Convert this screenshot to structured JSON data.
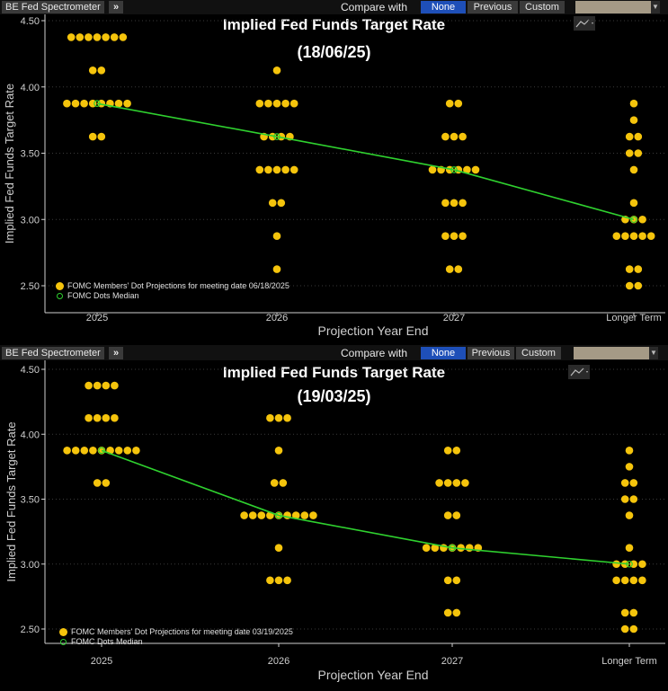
{
  "colors": {
    "dot": "#f5c40c",
    "median_line": "#2fd12f",
    "axis": "#cfcfcf",
    "background": "#000000",
    "toolbar_active": "#1e4fb8"
  },
  "panels": [
    {
      "toolbar": {
        "title": "BE Fed Spectrometer",
        "chevron": "»",
        "compare_label": "Compare with",
        "buttons": [
          "None",
          "Previous",
          "Custom"
        ],
        "active_button": "None"
      },
      "chart_icon": "chart-settings-icon",
      "legend": {
        "dots_label": "FOMC Members' Dot Projections for meeting date 06/18/2025",
        "median_label": "FOMC Dots Median"
      },
      "chart_data": {
        "type": "scatter",
        "title": "Implied Fed Funds Target Rate",
        "subtitle": "(18/06/25)",
        "xlabel": "Projection Year End",
        "ylabel": "Implied Fed Funds Target Rate",
        "categories": [
          "2025",
          "2026",
          "2027",
          "Longer Term"
        ],
        "ylim": [
          2.375,
          4.5
        ],
        "yticks": [
          "2.50",
          "3.00",
          "3.50",
          "4.00",
          "4.50"
        ],
        "grid": "horizontal-dotted",
        "legend_position": "bottom-left",
        "dots": [
          [
            {
              "v": 4.375,
              "n": 7
            },
            {
              "v": 4.125,
              "n": 2
            },
            {
              "v": 3.875,
              "n": 8
            },
            {
              "v": 3.625,
              "n": 2
            }
          ],
          [
            {
              "v": 4.125,
              "n": 1
            },
            {
              "v": 3.875,
              "n": 5
            },
            {
              "v": 3.625,
              "n": 4
            },
            {
              "v": 3.375,
              "n": 5
            },
            {
              "v": 3.125,
              "n": 2
            },
            {
              "v": 2.875,
              "n": 1
            },
            {
              "v": 2.625,
              "n": 1
            }
          ],
          [
            {
              "v": 3.875,
              "n": 2
            },
            {
              "v": 3.625,
              "n": 3
            },
            {
              "v": 3.375,
              "n": 6
            },
            {
              "v": 3.125,
              "n": 3
            },
            {
              "v": 2.875,
              "n": 3
            },
            {
              "v": 2.625,
              "n": 2
            }
          ],
          [
            {
              "v": 3.875,
              "n": 1
            },
            {
              "v": 3.75,
              "n": 1
            },
            {
              "v": 3.625,
              "n": 2
            },
            {
              "v": 3.5,
              "n": 2
            },
            {
              "v": 3.375,
              "n": 1
            },
            {
              "v": 3.125,
              "n": 1
            },
            {
              "v": 3.0,
              "n": 3
            },
            {
              "v": 2.875,
              "n": 5
            },
            {
              "v": 2.625,
              "n": 2
            },
            {
              "v": 2.5,
              "n": 2
            }
          ]
        ],
        "median": [
          3.875,
          3.625,
          3.375,
          3.0
        ]
      }
    },
    {
      "toolbar": {
        "title": "BE Fed Spectrometer",
        "chevron": "»",
        "compare_label": "Compare with",
        "buttons": [
          "None",
          "Previous",
          "Custom"
        ],
        "active_button": "None"
      },
      "chart_icon": "chart-settings-icon",
      "legend": {
        "dots_label": "FOMC Members' Dot Projections for meeting date 03/19/2025",
        "median_label": "FOMC Dots Median"
      },
      "chart_data": {
        "type": "scatter",
        "title": "Implied Fed Funds Target Rate",
        "subtitle": "(19/03/25)",
        "xlabel": "Projection Year End",
        "ylabel": "Implied Fed Funds Target Rate",
        "categories": [
          "2025",
          "2026",
          "2027",
          "Longer Term"
        ],
        "ylim": [
          2.375,
          4.5
        ],
        "yticks": [
          "2.50",
          "3.00",
          "3.50",
          "4.00",
          "4.50"
        ],
        "grid": "horizontal-dotted",
        "legend_position": "bottom-left",
        "dots": [
          [
            {
              "v": 4.375,
              "n": 4
            },
            {
              "v": 4.125,
              "n": 4
            },
            {
              "v": 3.875,
              "n": 9
            },
            {
              "v": 3.625,
              "n": 2
            }
          ],
          [
            {
              "v": 4.125,
              "n": 3
            },
            {
              "v": 3.875,
              "n": 1
            },
            {
              "v": 3.625,
              "n": 2
            },
            {
              "v": 3.375,
              "n": 9
            },
            {
              "v": 3.125,
              "n": 1
            },
            {
              "v": 2.875,
              "n": 3
            }
          ],
          [
            {
              "v": 3.875,
              "n": 2
            },
            {
              "v": 3.625,
              "n": 4
            },
            {
              "v": 3.375,
              "n": 2
            },
            {
              "v": 3.125,
              "n": 7
            },
            {
              "v": 2.875,
              "n": 2
            },
            {
              "v": 2.625,
              "n": 2
            }
          ],
          [
            {
              "v": 3.875,
              "n": 1
            },
            {
              "v": 3.75,
              "n": 1
            },
            {
              "v": 3.625,
              "n": 2
            },
            {
              "v": 3.5,
              "n": 2
            },
            {
              "v": 3.375,
              "n": 1
            },
            {
              "v": 3.125,
              "n": 1
            },
            {
              "v": 3.0,
              "n": 4
            },
            {
              "v": 2.875,
              "n": 4
            },
            {
              "v": 2.625,
              "n": 2
            },
            {
              "v": 2.5,
              "n": 2
            }
          ]
        ],
        "median": [
          3.875,
          3.375,
          3.125,
          3.0
        ]
      }
    }
  ]
}
